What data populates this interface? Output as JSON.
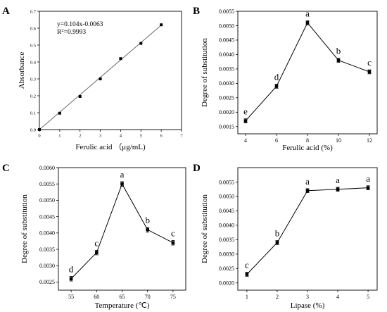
{
  "chart_data": [
    {
      "panel": "A",
      "type": "scatter",
      "xlabel": "Ferulic acid （μg/mL)",
      "ylabel": "Absorbance",
      "xlim": [
        0,
        7
      ],
      "ylim": [
        0,
        0.7
      ],
      "xticks": [
        "0",
        "1",
        "2",
        "3",
        "4",
        "5",
        "6",
        "7"
      ],
      "yticks": [
        "0.0",
        "0.1",
        "0.2",
        "0.3",
        "0.4",
        "0.5",
        "0.6",
        "0.7"
      ],
      "x": [
        0,
        1,
        2,
        3,
        4,
        5,
        6
      ],
      "y": [
        0.0,
        0.097,
        0.196,
        0.3,
        0.42,
        0.51,
        0.62
      ],
      "fit": {
        "slope": 0.104,
        "intercept": -0.0063
      },
      "equation": "y=0.104x-0.0063",
      "r2_prefix": "R",
      "r2_sup": "2",
      "r2_value": "=0.9993",
      "grid": false
    },
    {
      "panel": "B",
      "type": "line",
      "xlabel": "Ferulic acid (%)",
      "ylabel": "Degree of substitution",
      "xlim": [
        3.5,
        12.5
      ],
      "ylim": [
        0.00125,
        0.0055
      ],
      "xticks": [
        "4",
        "6",
        "8",
        "10",
        "12"
      ],
      "yticks": [
        "0.0015",
        "0.0020",
        "0.0025",
        "0.0030",
        "0.0035",
        "0.0040",
        "0.0045",
        "0.0050",
        "0.0055"
      ],
      "x": [
        4,
        6,
        8,
        10,
        12
      ],
      "y": [
        0.0017,
        0.0029,
        0.0051,
        0.0038,
        0.0034
      ],
      "err": [
        7e-05,
        7e-05,
        7e-05,
        7e-05,
        7e-05
      ],
      "labels": [
        "e",
        "d",
        "a",
        "b",
        "c"
      ],
      "grid": false
    },
    {
      "panel": "C",
      "type": "line",
      "xlabel": "Temperature (℃)",
      "ylabel": "Degree of substitution",
      "xlim": [
        52.5,
        77.5
      ],
      "ylim": [
        0.00225,
        0.006
      ],
      "xticks": [
        "55",
        "60",
        "65",
        "70",
        "75"
      ],
      "yticks": [
        "0.0025",
        "0.0030",
        "0.0035",
        "0.0040",
        "0.0045",
        "0.0050",
        "0.0055",
        "0.0060"
      ],
      "x": [
        55,
        60,
        65,
        70,
        75
      ],
      "y": [
        0.0026,
        0.0034,
        0.0055,
        0.0041,
        0.0037
      ],
      "err": [
        7e-05,
        7e-05,
        7e-05,
        7e-05,
        7e-05
      ],
      "labels": [
        "d",
        "c",
        "a",
        "b",
        "c"
      ],
      "grid": false
    },
    {
      "panel": "D",
      "type": "line",
      "xlabel": "Lipase (%)",
      "ylabel": "Degree of substitution",
      "xlim": [
        0.7,
        5.3
      ],
      "ylim": [
        0.00175,
        0.006
      ],
      "xticks": [
        "1",
        "2",
        "3",
        "4",
        "5"
      ],
      "yticks": [
        "0.0020",
        "0.0025",
        "0.0030",
        "0.0035",
        "0.0040",
        "0.0045",
        "0.0050",
        "0.0055"
      ],
      "x": [
        1,
        2,
        3,
        4,
        5
      ],
      "y": [
        0.0023,
        0.0034,
        0.0052,
        0.00525,
        0.0053
      ],
      "err": [
        7e-05,
        7e-05,
        7e-05,
        7e-05,
        7e-05
      ],
      "labels": [
        "c",
        "b",
        "a",
        "a",
        "a"
      ],
      "grid": false
    }
  ]
}
